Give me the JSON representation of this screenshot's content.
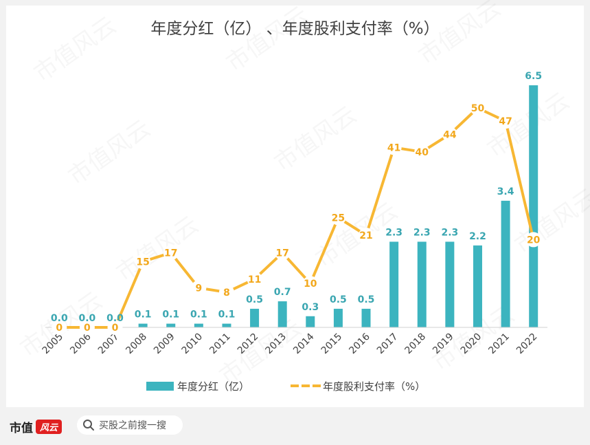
{
  "title": "年度分红（亿）  、年度股利支付率（%）",
  "watermark": "市值风云",
  "footer": {
    "brand": "市值",
    "brand_mark": "风云",
    "search_placeholder": "买股之前搜一搜",
    "search_icon": "search-icon"
  },
  "colors": {
    "bar": "#3cb4bf",
    "line": "#f7b733",
    "bar_label": "#3aa6b1",
    "line_label": "#f2a81d"
  },
  "chart_data": {
    "type": "bar",
    "categories": [
      "2005",
      "2006",
      "2007",
      "2008",
      "2009",
      "2010",
      "2011",
      "2012",
      "2013",
      "2014",
      "2015",
      "2016",
      "2017",
      "2018",
      "2019",
      "2020",
      "2021",
      "2022"
    ],
    "series": [
      {
        "name": "年度分红（亿）",
        "type": "bar",
        "values": [
          0.0,
          0.0,
          0.0,
          0.1,
          0.1,
          0.1,
          0.1,
          0.5,
          0.7,
          0.3,
          0.5,
          0.5,
          2.3,
          2.3,
          2.3,
          2.2,
          3.4,
          6.5
        ],
        "labels": [
          "0.0",
          "0.0",
          "0.0",
          "0.1",
          "0.1",
          "0.1",
          "0.1",
          "0.5",
          "0.7",
          "0.3",
          "0.5",
          "0.5",
          "2.3",
          "2.3",
          "2.3",
          "2.2",
          "3.4",
          "6.5"
        ]
      },
      {
        "name": "年度股利支付率（%）",
        "type": "line",
        "values": [
          0,
          0,
          0,
          15,
          17,
          9,
          8,
          11,
          17,
          10,
          25,
          21,
          41,
          40,
          44,
          50,
          47,
          20
        ],
        "labels": [
          "0",
          "0",
          "0",
          "15",
          "17",
          "9",
          "8",
          "11",
          "17",
          "10",
          "25",
          "21",
          "41",
          "40",
          "44",
          "50",
          "47",
          "20"
        ]
      }
    ],
    "bar_axis_range": [
      0,
      6.5
    ],
    "line_axis_range": [
      0,
      60
    ],
    "grid": false,
    "legend_position": "bottom"
  }
}
